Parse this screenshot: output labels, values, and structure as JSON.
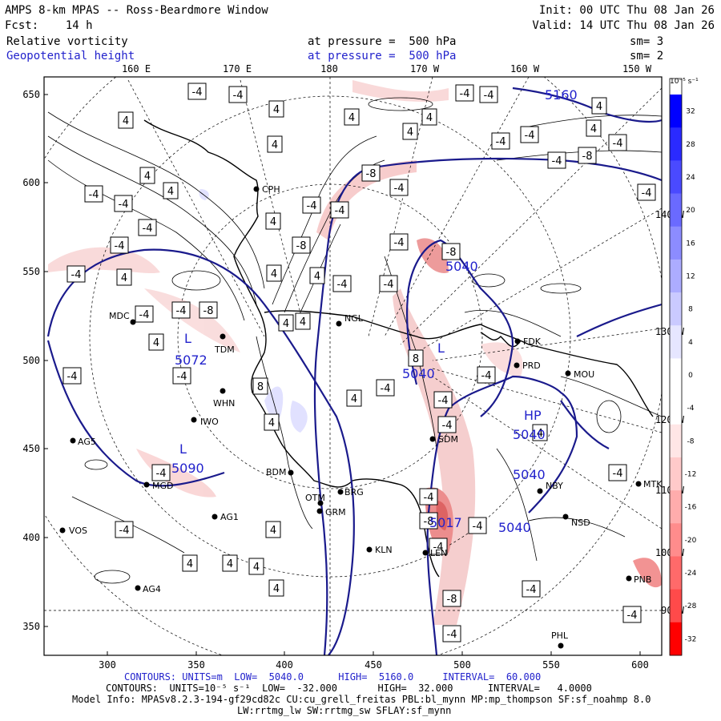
{
  "header": {
    "title": "AMPS 8-km MPAS -- Ross-Beardmore Window",
    "init": "Init: 00 UTC Thu 08 Jan 26",
    "fcst": "Fcst:    14 h",
    "valid": "Valid: 14 UTC Thu 08 Jan 26",
    "field1": "Relative vorticity",
    "field1_level": "at pressure =  500 hPa",
    "field1_sm": "sm= 3",
    "field2": "Geopotential height",
    "field2_level": "at pressure =  500 hPa",
    "field2_sm": "sm= 2"
  },
  "map": {
    "top_lon_labels": [
      "160 E",
      "170 E",
      "180",
      "170 W",
      "160 W",
      "150 W"
    ],
    "right_lon_labels": [
      "140 W",
      "130 W",
      "120 W",
      "110 W",
      "100 W",
      "90 W"
    ],
    "y_axis": [
      "650",
      "600",
      "550",
      "500",
      "450",
      "400",
      "350"
    ],
    "x_axis": [
      "300",
      "350",
      "400",
      "450",
      "500",
      "550",
      "600"
    ],
    "stations": [
      {
        "name": "CPH"
      },
      {
        "name": "MDC"
      },
      {
        "name": "TDM"
      },
      {
        "name": "WHN"
      },
      {
        "name": "IWO"
      },
      {
        "name": "AG5"
      },
      {
        "name": "MGD"
      },
      {
        "name": "VOS"
      },
      {
        "name": "AG1"
      },
      {
        "name": "AG4"
      },
      {
        "name": "BDM"
      },
      {
        "name": "OTM"
      },
      {
        "name": "BRG"
      },
      {
        "name": "GRM"
      },
      {
        "name": "KLN"
      },
      {
        "name": "LEN"
      },
      {
        "name": "NGL"
      },
      {
        "name": "SDM"
      },
      {
        "name": "FDK"
      },
      {
        "name": "PRD"
      },
      {
        "name": "MOU"
      },
      {
        "name": "NBY"
      },
      {
        "name": "NSD"
      },
      {
        "name": "MTK"
      },
      {
        "name": "PNB"
      },
      {
        "name": "PHL"
      }
    ],
    "height_labels": [
      "5040",
      "5040",
      "5072",
      "5090",
      "5017",
      "5040",
      "5040",
      "5040",
      "HP",
      "5160"
    ],
    "pressure_markers": [
      "L",
      "L",
      "L"
    ],
    "vorticity_labels": [
      "-4",
      "-8",
      "4",
      "8"
    ]
  },
  "colorbar": {
    "units": "10⁻⁵ s⁻¹",
    "labels": [
      "32",
      "28",
      "24",
      "20",
      "16",
      "12",
      "8",
      "4",
      "0",
      "-4",
      "-8",
      "-12",
      "-16",
      "-20",
      "-24",
      "-28",
      "-32"
    ],
    "colors": [
      "#0000ff",
      "#2a2aff",
      "#4a4aff",
      "#6a6aff",
      "#8c8cff",
      "#acacff",
      "#cacaff",
      "#e6e6ff",
      "#ffffff",
      "#ffffff",
      "#ffe6e6",
      "#ffcaca",
      "#ffacac",
      "#ff8c8c",
      "#ff6a6a",
      "#ff4a4a",
      "#ff0000"
    ]
  },
  "footer": {
    "line1": "CONTOURS: UNITS=m  LOW=  5040.0      HIGH=  5160.0     INTERVAL=  60.000",
    "line2": "CONTOURS:  UNITS=10⁻⁵ s⁻¹  LOW=  -32.000       HIGH=  32.000      INTERVAL=   4.0000",
    "line3": "Model Info: MPASv8.2.3-194-gf29cd82c CU:cu_grell_freitas PBL:bl_mynn MP:mp_thompson SF:sf_noahmp 8.0",
    "line4": "LW:rrtmg_lw SW:rrtmg_sw SFLAY:sf_mynn"
  },
  "colors": {
    "height_contour": "#1a1a8c",
    "coast": "#000000",
    "label_blue": "#2222cc"
  }
}
